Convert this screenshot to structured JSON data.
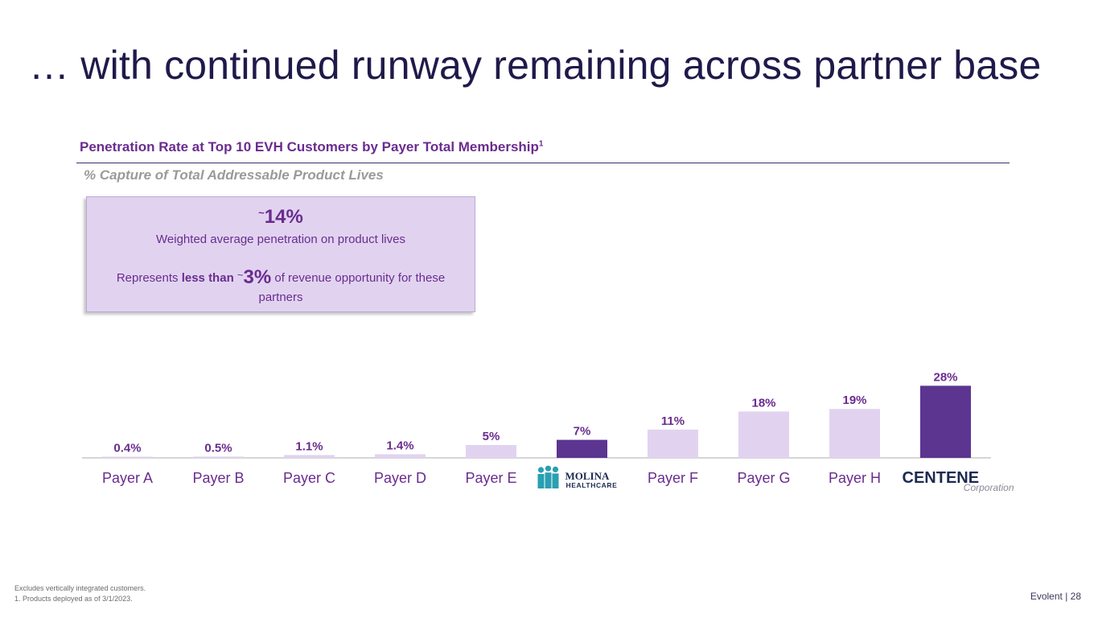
{
  "slide": {
    "title": "… with continued runway remaining across partner base",
    "section_header": "Penetration Rate at Top 10 EVH Customers by Payer Total Membership",
    "section_header_sup": "1",
    "section_subtitle": "% Capture of Total Addressable Product Lives"
  },
  "callout": {
    "tilde": "~",
    "big_value": "14%",
    "line1": "Weighted average penetration on product lives",
    "line2_prefix": "Represents ",
    "line2_bold": "less than",
    "line2_tilde": "~",
    "line2_pct": "3%",
    "line2_suffix": " of revenue opportunity for these partners"
  },
  "chart_data": {
    "type": "bar",
    "title": "",
    "xlabel": "",
    "ylabel": "",
    "categories": [
      "Payer A",
      "Payer B",
      "Payer C",
      "Payer D",
      "Payer E",
      "MOLINA HEALTHCARE",
      "Payer F",
      "Payer G",
      "Payer H",
      "CENTENE Corporation"
    ],
    "values": [
      0.4,
      0.5,
      1.1,
      1.4,
      5,
      7,
      11,
      18,
      19,
      28
    ],
    "data_labels": [
      "0.4%",
      "0.5%",
      "1.1%",
      "1.4%",
      "5%",
      "7%",
      "11%",
      "18%",
      "19%",
      "28%"
    ],
    "highlighted": [
      false,
      false,
      false,
      false,
      false,
      true,
      false,
      false,
      false,
      true
    ],
    "ylim": [
      0,
      30
    ],
    "grid": false,
    "colors": {
      "bar": "#e1d3f0",
      "bar_highlight": "#5b3590",
      "label": "#6a2c8f",
      "axis": "#c9c9c9",
      "category": "#6a2c8f"
    }
  },
  "logos": {
    "molina_name": "MOLINA",
    "molina_sub": "HEALTHCARE",
    "centene_name": "CENTENE",
    "centene_sub": "Corporation"
  },
  "footnotes": {
    "line1": "Excludes vertically integrated customers.",
    "line2": "1.  Products deployed as of 3/1/2023."
  },
  "footer": {
    "text": "Evolent  |  28"
  }
}
